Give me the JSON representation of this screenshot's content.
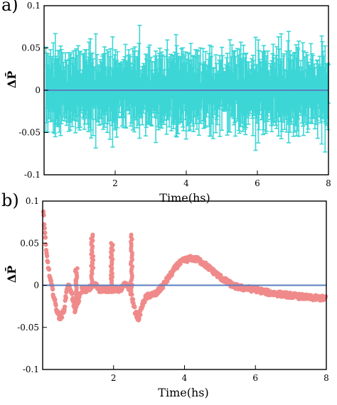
{
  "chart_data": [
    {
      "panel_label": "a)",
      "type": "scatter",
      "xlabel": "Time(hs)",
      "ylabel": "ΔP̄",
      "xlim": [
        0,
        8
      ],
      "ylim": [
        -0.1,
        0.1
      ],
      "x_ticks": [
        2,
        4,
        6,
        8
      ],
      "y_ticks": [
        0.1,
        0.05,
        0,
        -0.05,
        -0.1
      ],
      "y_tick_labels": [
        "0.1",
        "0.05",
        "0",
        "-0.05",
        "-0.1"
      ],
      "reference_line": 0,
      "error_bars": true,
      "colors": {
        "series": "#3dd6d6",
        "reference": "#5b7fbf"
      },
      "series": [
        {
          "points": {
            "x_start": 0.05,
            "x_end": 8.0,
            "count": 420
          },
          "mean": 0,
          "error_half_width": 0.035,
          "envelope": {
            "typical_max": 0.06,
            "typical_min": -0.06,
            "extreme_max": 0.085,
            "extreme_min": -0.09
          }
        }
      ]
    },
    {
      "panel_label": "b)",
      "type": "scatter",
      "xlabel": "Time(hs)",
      "ylabel": "ΔP̄",
      "xlim": [
        0,
        8
      ],
      "ylim": [
        -0.1,
        0.1
      ],
      "x_ticks": [
        2,
        4,
        6,
        8
      ],
      "y_ticks": [
        0.1,
        0.05,
        0,
        -0.05,
        -0.1
      ],
      "y_tick_labels": [
        "0.1",
        "0.05",
        "0",
        "-0.05",
        "-0.1"
      ],
      "reference_line": 0,
      "colors": {
        "series": "#f08a8a",
        "reference": "#5b7fbf"
      },
      "series": [
        {
          "x": [
            0.0,
            0.1,
            0.2,
            0.3,
            0.4,
            0.5,
            0.6,
            0.7,
            0.8,
            0.9,
            1.0,
            1.1,
            1.2,
            1.3,
            1.4,
            1.5,
            1.6,
            1.7,
            1.8,
            1.9,
            2.0,
            2.1,
            2.2,
            2.3,
            2.4,
            2.5,
            2.6,
            2.7,
            2.8,
            2.9,
            3.0,
            3.2,
            3.4,
            3.6,
            3.8,
            4.0,
            4.2,
            4.4,
            4.6,
            4.8,
            5.0,
            5.2,
            5.4,
            5.6,
            5.8,
            6.0,
            6.2,
            6.4,
            6.6,
            6.8,
            7.0,
            7.2,
            7.4,
            7.6,
            7.8,
            8.0
          ],
          "y": [
            0.1,
            0.04,
            0.01,
            -0.01,
            -0.03,
            -0.04,
            -0.03,
            0.0,
            -0.005,
            -0.03,
            -0.02,
            -0.005,
            -0.005,
            -0.005,
            0.0,
            0.0,
            -0.005,
            -0.005,
            -0.005,
            -0.005,
            -0.005,
            -0.005,
            -0.005,
            0.0,
            0.0,
            -0.01,
            -0.03,
            -0.04,
            -0.025,
            -0.015,
            -0.012,
            -0.01,
            0.0,
            0.012,
            0.024,
            0.03,
            0.032,
            0.03,
            0.024,
            0.017,
            0.01,
            0.004,
            -0.001,
            -0.003,
            -0.004,
            -0.005,
            -0.007,
            -0.009,
            -0.01,
            -0.011,
            -0.012,
            -0.013,
            -0.014,
            -0.015,
            -0.015,
            -0.016
          ],
          "spikes": [
            {
              "x": 0.95,
              "y_top": 0.02
            },
            {
              "x": 1.4,
              "y_top": 0.06
            },
            {
              "x": 1.95,
              "y_top": 0.05
            },
            {
              "x": 2.5,
              "y_top": 0.06
            }
          ]
        }
      ]
    }
  ]
}
